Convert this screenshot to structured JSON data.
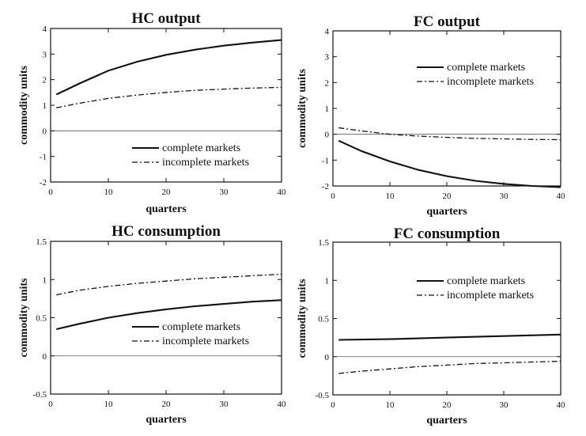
{
  "chart_data": [
    {
      "type": "line",
      "title": "HC output",
      "xlabel": "quarters",
      "ylabel": "commodity units",
      "xlim": [
        0,
        40
      ],
      "ylim": [
        -2,
        4
      ],
      "xticks": [
        "0",
        "10",
        "20",
        "30",
        "40"
      ],
      "yticks": [
        "-2",
        "-1",
        "0",
        "1",
        "2",
        "3",
        "4"
      ],
      "legend_position": "bottom-right",
      "series": [
        {
          "name": "complete markets",
          "style": "solid",
          "x": [
            1,
            5,
            10,
            15,
            20,
            25,
            30,
            35,
            40
          ],
          "y": [
            1.42,
            1.85,
            2.35,
            2.7,
            2.97,
            3.17,
            3.33,
            3.45,
            3.55
          ]
        },
        {
          "name": "incomplete markets",
          "style": "dashed",
          "x": [
            1,
            5,
            10,
            15,
            20,
            25,
            30,
            35,
            40
          ],
          "y": [
            0.9,
            1.08,
            1.27,
            1.4,
            1.5,
            1.58,
            1.63,
            1.67,
            1.7
          ]
        }
      ]
    },
    {
      "type": "line",
      "title": "FC output",
      "xlabel": "quarters",
      "ylabel": "commodity units",
      "xlim": [
        0,
        40
      ],
      "ylim": [
        -2,
        4
      ],
      "xticks": [
        "0",
        "10",
        "20",
        "30",
        "40"
      ],
      "yticks": [
        "-2",
        "-1",
        "0",
        "1",
        "2",
        "3",
        "4"
      ],
      "legend_position": "top-right",
      "series": [
        {
          "name": "complete markets",
          "style": "solid",
          "x": [
            1,
            5,
            10,
            15,
            20,
            25,
            30,
            35,
            40
          ],
          "y": [
            -0.25,
            -0.65,
            -1.05,
            -1.38,
            -1.62,
            -1.8,
            -1.92,
            -2.0,
            -2.05
          ]
        },
        {
          "name": "incomplete markets",
          "style": "dashed",
          "x": [
            1,
            5,
            10,
            15,
            20,
            25,
            30,
            35,
            40
          ],
          "y": [
            0.25,
            0.13,
            0.0,
            -0.07,
            -0.12,
            -0.16,
            -0.18,
            -0.2,
            -0.21
          ]
        }
      ]
    },
    {
      "type": "line",
      "title": "HC consumption",
      "xlabel": "quarters",
      "ylabel": "commodity units",
      "xlim": [
        0,
        40
      ],
      "ylim": [
        -0.5,
        1.5
      ],
      "xticks": [
        "0",
        "10",
        "20",
        "30",
        "40"
      ],
      "yticks": [
        "-0.5",
        "0",
        "0.5",
        "1",
        "1.5"
      ],
      "legend_position": "center-right",
      "series": [
        {
          "name": "complete markets",
          "style": "solid",
          "x": [
            1,
            5,
            10,
            15,
            20,
            25,
            30,
            35,
            40
          ],
          "y": [
            0.35,
            0.42,
            0.5,
            0.56,
            0.61,
            0.65,
            0.68,
            0.71,
            0.73
          ]
        },
        {
          "name": "incomplete markets",
          "style": "dashed",
          "x": [
            1,
            5,
            10,
            15,
            20,
            25,
            30,
            35,
            40
          ],
          "y": [
            0.8,
            0.86,
            0.91,
            0.95,
            0.98,
            1.01,
            1.03,
            1.05,
            1.07
          ]
        }
      ]
    },
    {
      "type": "line",
      "title": "FC consumption",
      "xlabel": "quarters",
      "ylabel": "commodity units",
      "xlim": [
        0,
        40
      ],
      "ylim": [
        -0.5,
        1.5
      ],
      "xticks": [
        "0",
        "10",
        "20",
        "30",
        "40"
      ],
      "yticks": [
        "-0.5",
        "0",
        "0.5",
        "1",
        "1.5"
      ],
      "legend_position": "top-right",
      "series": [
        {
          "name": "complete markets",
          "style": "solid",
          "x": [
            1,
            10,
            20,
            30,
            40
          ],
          "y": [
            0.22,
            0.23,
            0.25,
            0.27,
            0.29
          ]
        },
        {
          "name": "incomplete markets",
          "style": "dashed",
          "x": [
            1,
            5,
            10,
            15,
            20,
            25,
            30,
            35,
            40
          ],
          "y": [
            -0.22,
            -0.19,
            -0.16,
            -0.13,
            -0.11,
            -0.09,
            -0.08,
            -0.07,
            -0.06
          ]
        }
      ]
    }
  ]
}
